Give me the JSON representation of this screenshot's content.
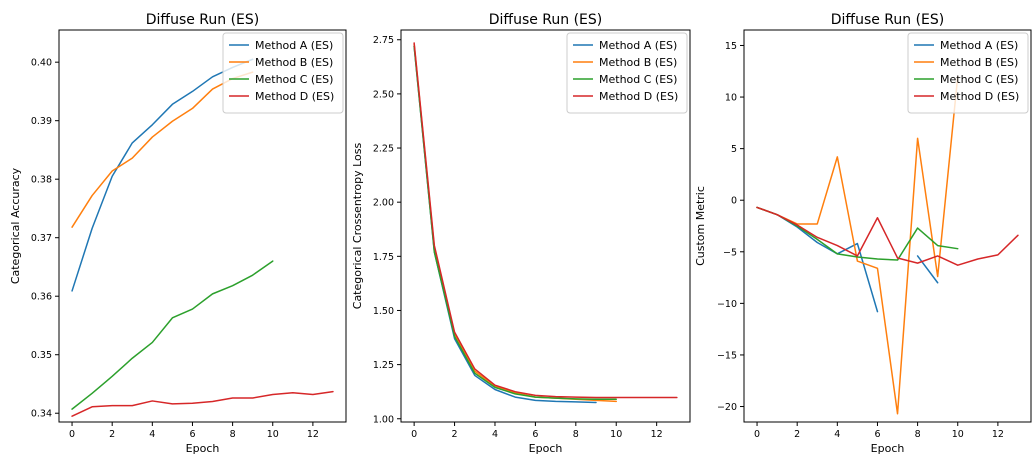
{
  "chart_data": [
    {
      "type": "line",
      "title": "Diffuse Run (ES)",
      "xlabel": "Epoch",
      "ylabel": "Categorical Accuracy",
      "xlim": [
        -0.65,
        13.65
      ],
      "ylim": [
        0.3385,
        0.4055
      ],
      "xticks": [
        0,
        2,
        4,
        6,
        8,
        10,
        12
      ],
      "yticks": [
        0.34,
        0.35,
        0.36,
        0.37,
        0.38,
        0.39,
        0.4
      ],
      "ytick_decimals": 2,
      "legend": "top-right",
      "series": [
        {
          "name": "Method A (ES)",
          "color": "#1f77b4",
          "x": [
            0,
            1,
            2,
            3,
            4,
            5,
            6,
            7,
            8,
            9
          ],
          "y": [
            0.3609,
            0.3716,
            0.3805,
            0.3862,
            0.3893,
            0.3928,
            0.395,
            0.3975,
            0.3991,
            0.4005
          ]
        },
        {
          "name": "Method B (ES)",
          "color": "#ff7f0e",
          "x": [
            0,
            1,
            2,
            3,
            4,
            5,
            6,
            7,
            8,
            9
          ],
          "y": [
            0.3718,
            0.3772,
            0.3814,
            0.3836,
            0.3872,
            0.3899,
            0.3921,
            0.3954,
            0.3972,
            0.3983
          ]
        },
        {
          "name": "Method C (ES)",
          "color": "#2ca02c",
          "x": [
            0,
            1,
            2,
            3,
            4,
            5,
            6,
            7,
            8,
            9,
            10
          ],
          "y": [
            0.3407,
            0.3434,
            0.3463,
            0.3494,
            0.3521,
            0.3563,
            0.3578,
            0.3604,
            0.3618,
            0.3636,
            0.366
          ]
        },
        {
          "name": "Method D (ES)",
          "color": "#d62728",
          "x": [
            0,
            1,
            2,
            3,
            4,
            5,
            6,
            7,
            8,
            9,
            10,
            11,
            12,
            13
          ],
          "y": [
            0.3395,
            0.3411,
            0.3413,
            0.3413,
            0.3421,
            0.3416,
            0.3417,
            0.342,
            0.3426,
            0.3426,
            0.3432,
            0.3435,
            0.3432,
            0.3437
          ]
        }
      ]
    },
    {
      "type": "line",
      "title": "Diffuse Run (ES)",
      "xlabel": "Epoch",
      "ylabel": "Categorical Crossentropy Loss",
      "xlim": [
        -0.65,
        13.65
      ],
      "ylim": [
        0.985,
        2.795
      ],
      "xticks": [
        0,
        2,
        4,
        6,
        8,
        10,
        12
      ],
      "yticks": [
        1.0,
        1.25,
        1.5,
        1.75,
        2.0,
        2.25,
        2.5,
        2.75
      ],
      "ytick_decimals": 2,
      "legend": "top-right",
      "series": [
        {
          "name": "Method A (ES)",
          "color": "#1f77b4",
          "x": [
            0,
            1,
            2,
            3,
            4,
            5,
            6,
            7,
            8,
            9
          ],
          "y": [
            2.72,
            1.77,
            1.37,
            1.2,
            1.135,
            1.1,
            1.085,
            1.08,
            1.078,
            1.075
          ]
        },
        {
          "name": "Method B (ES)",
          "color": "#ff7f0e",
          "x": [
            0,
            1,
            2,
            3,
            4,
            5,
            6,
            7,
            8,
            9,
            10
          ],
          "y": [
            2.73,
            1.79,
            1.39,
            1.22,
            1.15,
            1.12,
            1.1,
            1.095,
            1.09,
            1.085,
            1.08
          ]
        },
        {
          "name": "Method C (ES)",
          "color": "#2ca02c",
          "x": [
            0,
            1,
            2,
            3,
            4,
            5,
            6,
            7,
            8,
            9,
            10
          ],
          "y": [
            2.72,
            1.77,
            1.38,
            1.21,
            1.145,
            1.115,
            1.1,
            1.095,
            1.092,
            1.09,
            1.09
          ]
        },
        {
          "name": "Method D (ES)",
          "color": "#d62728",
          "x": [
            0,
            1,
            2,
            3,
            4,
            5,
            6,
            7,
            8,
            9,
            10,
            11,
            12,
            13
          ],
          "y": [
            2.735,
            1.8,
            1.4,
            1.23,
            1.155,
            1.125,
            1.108,
            1.102,
            1.1,
            1.098,
            1.098,
            1.098,
            1.098,
            1.098
          ]
        }
      ]
    },
    {
      "type": "line",
      "title": "Diffuse Run (ES)",
      "xlabel": "Epoch",
      "ylabel": "Custom Metric",
      "xlim": [
        -0.65,
        13.65
      ],
      "ylim": [
        -21.5,
        16.5
      ],
      "xticks": [
        0,
        2,
        4,
        6,
        8,
        10,
        12
      ],
      "yticks": [
        -20,
        -15,
        -10,
        -5,
        0,
        5,
        10,
        15
      ],
      "ytick_decimals": 0,
      "legend": "top-right",
      "series": [
        {
          "name": "Method A (ES)",
          "color": "#1f77b4",
          "x": [
            0,
            1,
            2,
            3,
            4,
            5,
            6,
            7,
            8,
            9
          ],
          "y": [
            -0.7,
            -1.4,
            -2.6,
            -4.1,
            -5.2,
            -4.2,
            -10.8,
            null,
            -5.4,
            -8.0
          ]
        },
        {
          "name": "Method B (ES)",
          "color": "#ff7f0e",
          "x": [
            0,
            1,
            2,
            3,
            4,
            5,
            6,
            7,
            8,
            9,
            10
          ],
          "y": [
            -0.7,
            -1.4,
            -2.3,
            -2.3,
            4.2,
            -5.9,
            -6.6,
            -20.7,
            6.0,
            -7.4,
            12.0
          ]
        },
        {
          "name": "Method C (ES)",
          "color": "#2ca02c",
          "x": [
            0,
            1,
            2,
            3,
            4,
            5,
            6,
            7,
            8,
            9,
            10
          ],
          "y": [
            -0.7,
            -1.4,
            -2.5,
            -3.8,
            -5.2,
            -5.5,
            -5.7,
            -5.8,
            -2.7,
            -4.4,
            -4.7
          ]
        },
        {
          "name": "Method D (ES)",
          "color": "#d62728",
          "x": [
            0,
            1,
            2,
            3,
            4,
            5,
            6,
            7,
            8,
            9,
            10,
            11,
            12,
            13
          ],
          "y": [
            -0.7,
            -1.4,
            -2.4,
            -3.6,
            -4.4,
            -5.4,
            -1.7,
            -5.6,
            -6.1,
            -5.4,
            -6.3,
            -5.7,
            -5.3,
            -3.4
          ]
        }
      ]
    }
  ]
}
